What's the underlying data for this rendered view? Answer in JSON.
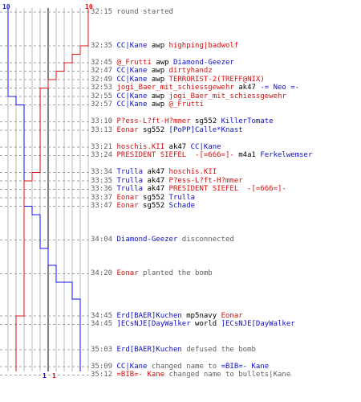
{
  "chart_data": {
    "type": "line",
    "title": "",
    "xlabel": "",
    "ylabel": "",
    "xlim": [
      0,
      10
    ],
    "top_labels": {
      "left": "10",
      "right": "10"
    },
    "bottom_labels": {
      "left": "1",
      "right": "1"
    },
    "series": [
      {
        "color": "#1010ff",
        "steps": [
          {
            "y": 0,
            "x": 0
          },
          {
            "y": 10,
            "x": 1
          },
          {
            "y": 11,
            "x": 2
          },
          {
            "y": 23,
            "x": 3
          },
          {
            "y": 24,
            "x": 4
          },
          {
            "y": 28,
            "x": 5
          },
          {
            "y": 30,
            "x": 6
          },
          {
            "y": 32,
            "x": 7
          },
          {
            "y": 32,
            "x": 8
          },
          {
            "y": 34,
            "x": 9
          },
          {
            "y": 41,
            "x": 9
          }
        ]
      },
      {
        "color": "#e01010",
        "steps": [
          {
            "y": 0,
            "x": 10
          },
          {
            "y": 4,
            "x": 9
          },
          {
            "y": 5,
            "x": 8
          },
          {
            "y": 6,
            "x": 7
          },
          {
            "y": 7,
            "x": 6
          },
          {
            "y": 8,
            "x": 5
          },
          {
            "y": 9,
            "x": 4
          },
          {
            "y": 19,
            "x": 3
          },
          {
            "y": 20,
            "x": 2
          },
          {
            "y": 36,
            "x": 1
          },
          {
            "y": 41,
            "x": 1
          }
        ]
      }
    ],
    "events": [
      {
        "row": 0,
        "time": "32:15",
        "parts": [
          {
            "text": "round started",
            "c": "msg"
          }
        ]
      },
      {
        "row": 4,
        "time": "32:35",
        "parts": [
          {
            "text": "CC|Kane",
            "c": "b"
          },
          {
            "text": " awp ",
            "c": "w"
          },
          {
            "text": "highping|badwolf",
            "c": "r"
          }
        ]
      },
      {
        "row": 6,
        "time": "32:45",
        "parts": [
          {
            "text": "@_Frutti",
            "c": "r"
          },
          {
            "text": " awp ",
            "c": "w"
          },
          {
            "text": "Diamond-Geezer",
            "c": "b"
          }
        ]
      },
      {
        "row": 7,
        "time": "32:47",
        "parts": [
          {
            "text": "CC|Kane",
            "c": "b"
          },
          {
            "text": " awp ",
            "c": "w"
          },
          {
            "text": "dirtyhandz",
            "c": "r"
          }
        ]
      },
      {
        "row": 8,
        "time": "32:49",
        "parts": [
          {
            "text": "CC|Kane",
            "c": "b"
          },
          {
            "text": " awp ",
            "c": "w"
          },
          {
            "text": "TERRORIST-2(TREFF@NIX)",
            "c": "r"
          }
        ]
      },
      {
        "row": 9,
        "time": "32:53",
        "parts": [
          {
            "text": "jogi_Baer_mit_schiessgewehr",
            "c": "r"
          },
          {
            "text": " ak47 ",
            "c": "w"
          },
          {
            "text": "-= Neo =-",
            "c": "b"
          }
        ]
      },
      {
        "row": 10,
        "time": "32:55",
        "parts": [
          {
            "text": "CC|Kane",
            "c": "b"
          },
          {
            "text": " awp ",
            "c": "w"
          },
          {
            "text": "jogi_Baer_mit_schiessgewehr",
            "c": "r"
          }
        ]
      },
      {
        "row": 11,
        "time": "32:57",
        "parts": [
          {
            "text": "CC|Kane",
            "c": "b"
          },
          {
            "text": " awp ",
            "c": "w"
          },
          {
            "text": "@_Frutti",
            "c": "r"
          }
        ]
      },
      {
        "row": 13,
        "time": "33:10",
        "parts": [
          {
            "text": "P?ess-L?ft-H?mmer",
            "c": "r"
          },
          {
            "text": " sg552 ",
            "c": "w"
          },
          {
            "text": "KillerTomate",
            "c": "b"
          }
        ]
      },
      {
        "row": 14,
        "time": "33:13",
        "parts": [
          {
            "text": "Eonar",
            "c": "r"
          },
          {
            "text": " sg552 ",
            "c": "w"
          },
          {
            "text": "[PoPP]Calle*Knast",
            "c": "b"
          }
        ]
      },
      {
        "row": 16,
        "time": "33:21",
        "parts": [
          {
            "text": "hoschis.KII",
            "c": "r"
          },
          {
            "text": " ak47 ",
            "c": "w"
          },
          {
            "text": "CC|Kane",
            "c": "b"
          }
        ]
      },
      {
        "row": 17,
        "time": "33:24",
        "parts": [
          {
            "text": "PRESIDENT SIEFEL  -[=666=]-",
            "c": "r"
          },
          {
            "text": " m4a1 ",
            "c": "w"
          },
          {
            "text": "Ferkelwemser",
            "c": "b"
          }
        ]
      },
      {
        "row": 19,
        "time": "33:34",
        "parts": [
          {
            "text": "Trulla",
            "c": "b"
          },
          {
            "text": " ak47 ",
            "c": "w"
          },
          {
            "text": "hoschis.KII",
            "c": "r"
          }
        ]
      },
      {
        "row": 20,
        "time": "33:35",
        "parts": [
          {
            "text": "Trulla",
            "c": "b"
          },
          {
            "text": " ak47 ",
            "c": "w"
          },
          {
            "text": "P?ess-L?ft-H?mmer",
            "c": "r"
          }
        ]
      },
      {
        "row": 21,
        "time": "33:36",
        "parts": [
          {
            "text": "Trulla",
            "c": "b"
          },
          {
            "text": " ak47 ",
            "c": "w"
          },
          {
            "text": "PRESIDENT SIEFEL  -[=666=]-",
            "c": "r"
          }
        ]
      },
      {
        "row": 22,
        "time": "33:37",
        "parts": [
          {
            "text": "Eonar",
            "c": "r"
          },
          {
            "text": " sg552 ",
            "c": "w"
          },
          {
            "text": "Trulla",
            "c": "b"
          }
        ]
      },
      {
        "row": 23,
        "time": "33:47",
        "parts": [
          {
            "text": "Eonar",
            "c": "r"
          },
          {
            "text": " sg552 ",
            "c": "w"
          },
          {
            "text": "Schade",
            "c": "b"
          }
        ]
      },
      {
        "row": 27,
        "time": "34:04",
        "parts": [
          {
            "text": "Diamond-Geezer",
            "c": "b"
          },
          {
            "text": " disconnected",
            "c": "msg"
          }
        ]
      },
      {
        "row": 31,
        "time": "34:20",
        "parts": [
          {
            "text": "Eonar",
            "c": "r"
          },
          {
            "text": " planted the bomb",
            "c": "msg"
          }
        ]
      },
      {
        "row": 36,
        "time": "34:45",
        "parts": [
          {
            "text": "Erd[BAER]Kuchen",
            "c": "b"
          },
          {
            "text": " mp5navy ",
            "c": "w"
          },
          {
            "text": "Eonar",
            "c": "r"
          }
        ]
      },
      {
        "row": 37,
        "time": "34:45",
        "parts": [
          {
            "text": "]ECsNJE[DayWalker",
            "c": "b"
          },
          {
            "text": " world ",
            "c": "w"
          },
          {
            "text": "]ECsNJE[DayWalker",
            "c": "b"
          }
        ]
      },
      {
        "row": 40,
        "time": "35:03",
        "parts": [
          {
            "text": "Erd[BAER]Kuchen",
            "c": "b"
          },
          {
            "text": " defused the bomb",
            "c": "msg"
          }
        ]
      },
      {
        "row": 42,
        "time": "35:09",
        "parts": [
          {
            "text": "CC|Kane",
            "c": "b"
          },
          {
            "text": " changed name to ",
            "c": "msg"
          },
          {
            "text": "=BIB=- Kane",
            "c": "b"
          }
        ]
      },
      {
        "row": 43,
        "time": "35:12",
        "parts": [
          {
            "text": "=BIB=- Kane",
            "c": "r"
          },
          {
            "text": " changed name to bullets|Kane",
            "c": "msg"
          }
        ]
      }
    ]
  }
}
